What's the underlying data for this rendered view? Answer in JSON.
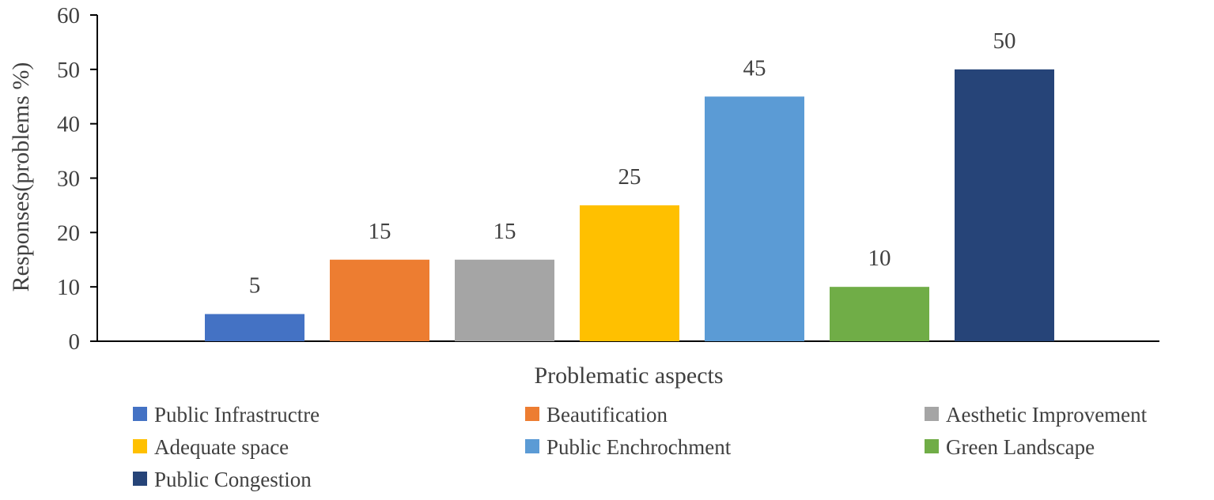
{
  "chart_data": {
    "type": "bar",
    "title": "",
    "xlabel": "Problematic aspects",
    "ylabel": "Responses(problems %)",
    "ylim": [
      0,
      60
    ],
    "yticks": [
      0,
      10,
      20,
      30,
      40,
      50,
      60
    ],
    "grid": false,
    "legend_position": "bottom",
    "categories": [
      "Public Infrastructre",
      "Beautification",
      "Aesthetic Improvement",
      "Adequate space",
      "Public Enchrochment",
      "Green Landscape",
      "Public Congestion"
    ],
    "values": [
      5,
      15,
      15,
      25,
      45,
      10,
      50
    ],
    "colors": [
      "#4472C4",
      "#ED7D31",
      "#A5A5A5",
      "#FFC000",
      "#5B9BD5",
      "#70AD47",
      "#264478"
    ],
    "data_labels": true
  }
}
